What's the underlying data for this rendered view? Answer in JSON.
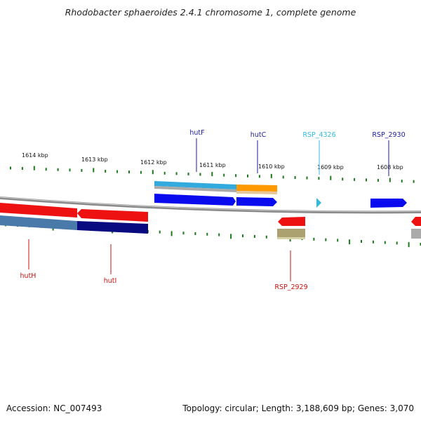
{
  "title": "Rhodobacter sphaeroides 2.4.1 chromosome 1, complete genome",
  "accession": "Accession: NC_007493",
  "topology": "Topology: circular; Length: 3,188,609 bp; Genes: 3,070",
  "scale_labels": [
    "1614 kbp",
    "1613 kbp",
    "1612 kbp",
    "1611 kbp",
    "1610 kbp",
    "1609 kbp",
    "1608 kbp"
  ],
  "gene_labels": [
    {
      "text": "hutF",
      "color": "#1a1aa0"
    },
    {
      "text": "hutC",
      "color": "#1a1aa0"
    },
    {
      "text": "RSP_4326",
      "color": "#33bbdd"
    },
    {
      "text": "RSP_2930",
      "color": "#1a1aa0"
    },
    {
      "text": "hutH",
      "color": "#cc1111"
    },
    {
      "text": "hutI",
      "color": "#cc1111"
    },
    {
      "text": "RSP_2929",
      "color": "#cc1111"
    }
  ],
  "colors": {
    "tick": "#1a7a1a",
    "backbone": "#888888",
    "forward_gene": "#0a0aee",
    "reverse_gene": "#ee1111",
    "cds_forward": "#33aadd",
    "cds_orange": "#ff9900",
    "cds_reverse": "#4a7aaa",
    "cds_navy": "#0a0a80",
    "cds_olive": "#aaa070",
    "cds_grey": "#aaaaaa"
  }
}
